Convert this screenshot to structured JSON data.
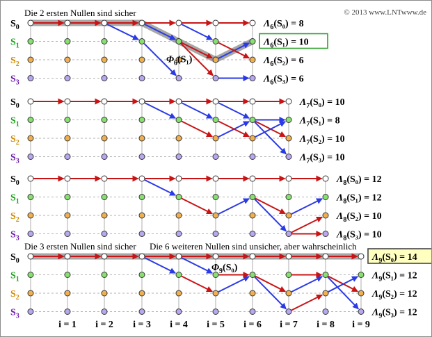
{
  "copyright": "© 2013 www.LNTwww.de",
  "state_labels": [
    {
      "sym": "S",
      "sub": "0",
      "color": "#000000"
    },
    {
      "sym": "S",
      "sub": "1",
      "color": "#1aa01a"
    },
    {
      "sym": "S",
      "sub": "2",
      "color": "#cc8800"
    },
    {
      "sym": "S",
      "sub": "3",
      "color": "#6a1aa8"
    }
  ],
  "step_labels": [
    "i = 1",
    "i = 2",
    "i = 3",
    "i = 4",
    "i = 5",
    "i = 6",
    "i = 7",
    "i = 8",
    "i = 9"
  ],
  "colors": {
    "survivor_red": "#c81414",
    "survivor_blue": "#2a3ae6",
    "highlight_box": "#2ea02e",
    "highlight_fill_green": "#ffffff",
    "highlight_fill_yellow": "#ffffc0",
    "node_s0": "#ffffff",
    "node_s1": "#88e070",
    "node_s2": "#f0b050",
    "node_s3": "#b8a8f0",
    "path_highlight": "#8a8a8a",
    "grid": "#999999"
  },
  "panels": [
    {
      "note": "Die 2 ersten Nullen sind sicher",
      "note2": "",
      "phi": {
        "label": "Φ",
        "sub": "6",
        "arg": "(S₁)"
      },
      "metrics": [
        {
          "greek": "Λ",
          "sub": "6",
          "state": "(S₀)",
          "value": "=  8"
        },
        {
          "greek": "Λ",
          "sub": "6",
          "state": "(S₁)",
          "value": "= 10"
        },
        {
          "greek": "Λ",
          "sub": "6",
          "state": "(S₂)",
          "value": "=  6"
        },
        {
          "greek": "Λ",
          "sub": "6",
          "state": "(S₃)",
          "value": "=  6"
        }
      ],
      "highlight_metric": 1
    },
    {
      "note": "",
      "note2": "",
      "metrics": [
        {
          "greek": "Λ",
          "sub": "7",
          "state": "(S₀)",
          "value": "= 10"
        },
        {
          "greek": "Λ",
          "sub": "7",
          "state": "(S₁)",
          "value": "=  8"
        },
        {
          "greek": "Λ",
          "sub": "7",
          "state": "(S₂)",
          "value": "= 10"
        },
        {
          "greek": "Λ",
          "sub": "7",
          "state": "(S₃)",
          "value": "= 10"
        }
      ],
      "highlight_metric": -1
    },
    {
      "note": "",
      "note2": "",
      "metrics": [
        {
          "greek": "Λ",
          "sub": "8",
          "state": "(S₀)",
          "value": "= 12"
        },
        {
          "greek": "Λ",
          "sub": "8",
          "state": "(S₁)",
          "value": "= 12"
        },
        {
          "greek": "Λ",
          "sub": "8",
          "state": "(S₂)",
          "value": "= 10"
        },
        {
          "greek": "Λ",
          "sub": "8",
          "state": "(S₃)",
          "value": "= 10"
        }
      ],
      "highlight_metric": -1
    },
    {
      "note": "Die 3 ersten Nullen sind sicher",
      "note2": "Die 6 weiteren Nullen sind unsicher, aber wahrscheinlich",
      "phi": {
        "label": "Φ",
        "sub": "9",
        "arg": "(S₀)"
      },
      "metrics": [
        {
          "greek": "Λ",
          "sub": "9",
          "state": "(S₀)",
          "value": "= 14"
        },
        {
          "greek": "Λ",
          "sub": "9",
          "state": "(S₁)",
          "value": "= 12"
        },
        {
          "greek": "Λ",
          "sub": "9",
          "state": "(S₂)",
          "value": "= 12"
        },
        {
          "greek": "Λ",
          "sub": "9",
          "state": "(S₃)",
          "value": "= 12"
        }
      ],
      "highlight_metric": 0
    }
  ]
}
